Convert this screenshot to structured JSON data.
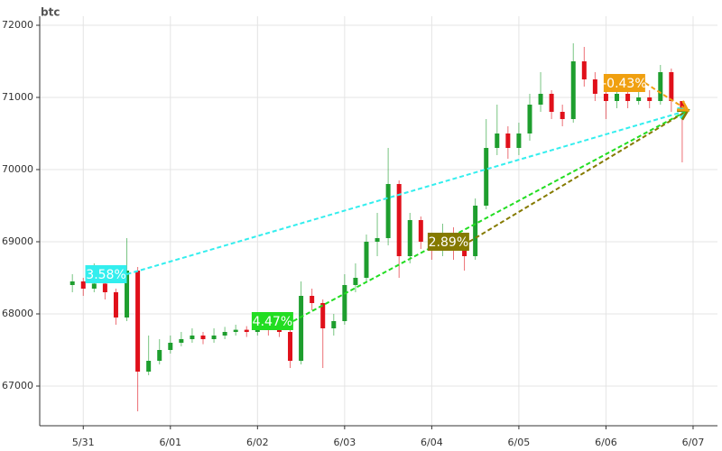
{
  "chart_data": {
    "type": "candlestick",
    "title": "btc",
    "x": [
      -0.125,
      0,
      0.125,
      0.25,
      0.375,
      0.5,
      0.625,
      0.75,
      0.875,
      1,
      1.125,
      1.25,
      1.375,
      1.5,
      1.625,
      1.75,
      1.875,
      2,
      2.125,
      2.25,
      2.375,
      2.5,
      2.625,
      2.75,
      2.875,
      3,
      3.125,
      3.25,
      3.375,
      3.5,
      3.625,
      3.75,
      3.875,
      4,
      4.125,
      4.25,
      4.375,
      4.5,
      4.625,
      4.75,
      4.875,
      5,
      5.125,
      5.25,
      5.375,
      5.5,
      5.625,
      5.75,
      5.875,
      6,
      6.125,
      6.25,
      6.375,
      6.5,
      6.625,
      6.75,
      6.875
    ],
    "open": [
      68400,
      68450,
      68350,
      68420,
      68300,
      67950,
      68600,
      67200,
      67350,
      67500,
      67600,
      67650,
      67700,
      67650,
      67700,
      67750,
      67780,
      67750,
      67800,
      67780,
      67750,
      67350,
      68250,
      68150,
      67800,
      67900,
      68400,
      68500,
      69000,
      69050,
      69800,
      68800,
      69300,
      69000,
      68900,
      69100,
      68900,
      68800,
      69500,
      70300,
      70500,
      70300,
      70500,
      70900,
      71050,
      70800,
      70700,
      71500,
      71250,
      71050,
      70950,
      71050,
      70950,
      71000,
      70950,
      71350,
      70950
    ],
    "high": [
      68550,
      68500,
      68700,
      68500,
      68350,
      69050,
      68650,
      67700,
      67650,
      67700,
      67750,
      67800,
      67750,
      67800,
      67820,
      67850,
      67830,
      67870,
      67850,
      67820,
      67780,
      68450,
      68350,
      68200,
      68000,
      68550,
      68700,
      69100,
      69400,
      70300,
      69850,
      69400,
      69350,
      69100,
      69250,
      69200,
      69000,
      69600,
      70700,
      70900,
      70600,
      70650,
      71050,
      71350,
      71100,
      70900,
      71750,
      71700,
      71350,
      71150,
      71150,
      71100,
      71100,
      71100,
      71450,
      71400,
      70950
    ],
    "low": [
      68300,
      68250,
      68300,
      68200,
      67850,
      67900,
      66650,
      67150,
      67300,
      67450,
      67550,
      67600,
      67580,
      67600,
      67650,
      67700,
      67680,
      67700,
      67700,
      67680,
      67250,
      67300,
      68050,
      67250,
      67700,
      67850,
      68300,
      68450,
      68800,
      68950,
      68500,
      68700,
      68900,
      68750,
      68800,
      68750,
      68600,
      68750,
      69450,
      70200,
      70150,
      70200,
      70400,
      70800,
      70700,
      70600,
      70650,
      71150,
      70950,
      70700,
      70850,
      70850,
      70900,
      70850,
      70900,
      70800,
      70100
    ],
    "close": [
      68450,
      68350,
      68420,
      68300,
      67950,
      68600,
      67200,
      67350,
      67500,
      67600,
      67650,
      67700,
      67650,
      67700,
      67750,
      67780,
      67750,
      67800,
      67780,
      67750,
      67350,
      68250,
      68150,
      67800,
      67900,
      68400,
      68500,
      69000,
      69050,
      69800,
      68800,
      69300,
      69000,
      68900,
      69100,
      68900,
      68800,
      69500,
      70300,
      70500,
      70300,
      70500,
      70900,
      71050,
      70800,
      70700,
      71500,
      71250,
      71050,
      70950,
      71050,
      70950,
      71000,
      70950,
      71350,
      70950,
      70800
    ],
    "up_color": "#1e9e2e",
    "down_color": "#e0101a",
    "xlim": [
      -0.5,
      7.28
    ],
    "ylim": [
      66450,
      72125
    ],
    "xticks": [
      {
        "value": 0,
        "label": "5/31"
      },
      {
        "value": 1,
        "label": "6/01"
      },
      {
        "value": 2,
        "label": "6/02"
      },
      {
        "value": 3,
        "label": "6/03"
      },
      {
        "value": 4,
        "label": "6/04"
      },
      {
        "value": 5,
        "label": "6/05"
      },
      {
        "value": 6,
        "label": "6/06"
      },
      {
        "value": 7,
        "label": "6/07"
      }
    ],
    "yticks": [
      67000,
      68000,
      69000,
      70000,
      71000,
      72000
    ],
    "grid": true,
    "annotations": [
      {
        "label": "3.58%",
        "color": "#33eeee",
        "x0": 0.5,
        "y0": 68550,
        "x1": 6.94,
        "y1": 70820
      },
      {
        "label": "4.47%",
        "color": "#22dd22",
        "x0": 2.41,
        "y0": 67900,
        "x1": 6.94,
        "y1": 70820
      },
      {
        "label": "2.89%",
        "color": "#857a00",
        "x0": 4.43,
        "y0": 69000,
        "x1": 6.94,
        "y1": 70820
      },
      {
        "label": "-0.43%",
        "color": "#f0a010",
        "x0": 6.45,
        "y0": 71200,
        "x1": 6.94,
        "y1": 70820
      }
    ]
  }
}
